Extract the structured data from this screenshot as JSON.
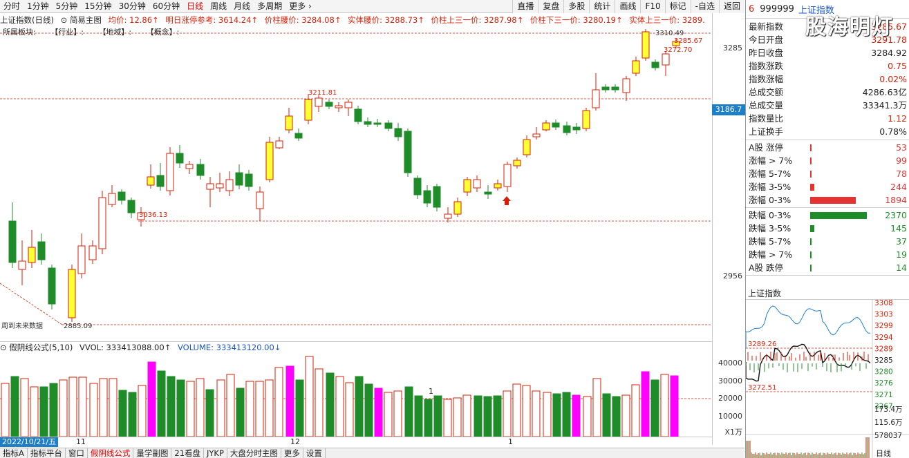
{
  "topbar": {
    "items": [
      "分时",
      "1分钟",
      "5分钟",
      "15分钟",
      "30分钟",
      "60分钟",
      "日线",
      "周线",
      "月线",
      "多周期",
      "更多 ›"
    ],
    "active_index": 6,
    "tools": [
      "直播",
      "复盘",
      "多股",
      "统计",
      "画线",
      "F10",
      "标记",
      "-自选",
      "返回"
    ]
  },
  "info": {
    "name": "上证指数(日线)",
    "main_tab": "简易主图",
    "avg": "均价: 12.86↑",
    "limit": "明日涨停参考: 3614.24↑",
    "waist": "价柱腰价: 3284.08↑",
    "body_waist": "实体腰价: 3288.73↑",
    "upper3": "价柱上三一价: 3287.98↑",
    "lower3": "价柱下三一价: 3280.19↑",
    "body_upper3": "实体上三一价: 3289."
  },
  "sector": {
    "label": "所属板块:",
    "industry": "【行业】:",
    "region": "【地域】:",
    "concept": "【概念】:"
  },
  "yaxis": {
    "labels": [
      "3285",
      "2956"
    ],
    "current": "3186.7",
    "vol_labels": [
      "40000",
      "30000",
      "20000",
      "10000"
    ],
    "unit": "X1万"
  },
  "annotations": {
    "high": "3310.49",
    "p3285": "3285.67",
    "p3272": "3272.70",
    "p3211": "3211.81",
    "p3036": "3036.13",
    "p2885": "2885.09",
    "note": "周到未来数据",
    "vol_marker": "1"
  },
  "vol": {
    "title": "假阴线公式(5,10)",
    "vvol": "VVOL: 333413088.00↑",
    "volume": "VOLUME: 333413120.00↓"
  },
  "dates": {
    "current": "2022/10/21/五",
    "m11": "11",
    "m12": "12",
    "m1": "1"
  },
  "bottombar": {
    "tabs": [
      "指标A",
      "指标平台",
      "窗口",
      "假阴线公式",
      "量学副图",
      "21看盘",
      "JYKP",
      "大盘分时主图",
      "更多",
      "设置"
    ],
    "active_index": 3
  },
  "right": {
    "marker": "6",
    "code": "999999",
    "name": "上证指数",
    "watermark": "股海明灯",
    "stats": [
      {
        "label": "最新指数",
        "value": "3285.67",
        "color": "red"
      },
      {
        "label": "今日开盘",
        "value": "3291.78",
        "color": "red"
      },
      {
        "label": "昨日收盘",
        "value": "3284.92",
        "color": "black"
      },
      {
        "label": "指数涨跌",
        "value": "0.75",
        "color": "red"
      },
      {
        "label": "指数涨幅",
        "value": "0.02%",
        "color": "red"
      },
      {
        "label": "总成交额",
        "value": "4286.63亿",
        "color": "black"
      },
      {
        "label": "总成交量",
        "value": "33341.3万",
        "color": "black"
      },
      {
        "label": "指数量比",
        "value": "1.12",
        "color": "red"
      },
      {
        "label": "上证换手",
        "value": "0.78%",
        "color": "black"
      }
    ],
    "up_dist": [
      {
        "label": "A股 涨停",
        "count": "53",
        "frac": 0.012
      },
      {
        "label": "涨幅 > 7%",
        "count": "99",
        "frac": 0.02
      },
      {
        "label": "涨幅 5-7%",
        "count": "78",
        "frac": 0.017
      },
      {
        "label": "涨幅 3-5%",
        "count": "244",
        "frac": 0.07
      },
      {
        "label": "涨幅 0-3%",
        "count": "1894",
        "frac": 0.8
      }
    ],
    "down_dist": [
      {
        "label": "跌幅 0-3%",
        "count": "2370",
        "frac": 1.0
      },
      {
        "label": "跌幅 3-5%",
        "count": "145",
        "frac": 0.07
      },
      {
        "label": "跌幅 5-7%",
        "count": "37",
        "frac": 0.012
      },
      {
        "label": "跌幅 > 7%",
        "count": "19",
        "frac": 0.008
      },
      {
        "label": "A股 跌停",
        "count": "14",
        "frac": 0.006
      }
    ],
    "mini_title": "上证指数",
    "mini_labels": [
      "3308",
      "3303",
      "3299",
      "3294",
      "3289",
      "3285",
      "3280",
      "3276",
      "3271",
      "3267"
    ],
    "mini_marks": {
      "high": "3289.26",
      "low": "3272.51"
    },
    "mini_vol_labels": [
      "173.4万",
      "115.6万",
      "578037"
    ],
    "mini_tab": "日线"
  },
  "colors": {
    "up": "#d81e06",
    "down": "#1f8c2a",
    "yellow": "#ffff33",
    "magenta": "#ff00ff",
    "dash": "#d81e06"
  }
}
